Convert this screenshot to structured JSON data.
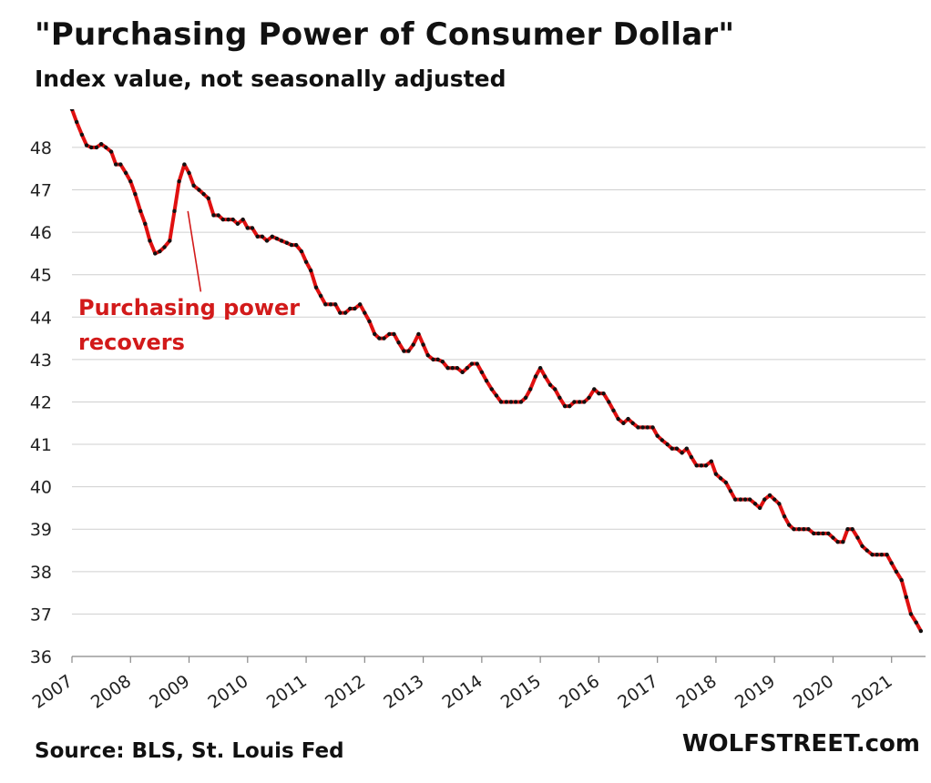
{
  "chart_data": {
    "type": "line",
    "title": "\"Purchasing Power of Consumer Dollar\"",
    "subtitle": "Index value, not seasonally adjusted",
    "source": "Source: BLS, St. Louis Fed",
    "brand": "WOLFSTREET.com",
    "xlabel": "",
    "ylabel": "",
    "xlim": [
      2007,
      2021.58
    ],
    "ylim": [
      36,
      48.9
    ],
    "y_ticks": [
      "36",
      "37",
      "38",
      "39",
      "40",
      "41",
      "42",
      "43",
      "44",
      "45",
      "46",
      "47",
      "48"
    ],
    "x_ticks": [
      "2007",
      "2008",
      "2009",
      "2010",
      "2011",
      "2012",
      "2013",
      "2014",
      "2015",
      "2016",
      "2017",
      "2018",
      "2019",
      "2020",
      "2021"
    ],
    "grid": true,
    "line_color": "#e01010",
    "marker_color": "#111111",
    "annotation": {
      "lines": [
        "Purchasing power",
        "recovers"
      ],
      "color": "#d21a1a",
      "arrow_from": [
        2009.2,
        44.6
      ],
      "arrow_to": [
        2008.98,
        46.5
      ]
    },
    "series": [
      {
        "name": "Purchasing Power of Consumer Dollar",
        "x": [
          2007.0,
          2007.08,
          2007.17,
          2007.25,
          2007.33,
          2007.42,
          2007.5,
          2007.58,
          2007.67,
          2007.75,
          2007.83,
          2007.92,
          2008.0,
          2008.08,
          2008.17,
          2008.25,
          2008.33,
          2008.42,
          2008.5,
          2008.58,
          2008.67,
          2008.75,
          2008.83,
          2008.92,
          2009.0,
          2009.08,
          2009.17,
          2009.25,
          2009.33,
          2009.42,
          2009.5,
          2009.58,
          2009.67,
          2009.75,
          2009.83,
          2009.92,
          2010.0,
          2010.08,
          2010.17,
          2010.25,
          2010.33,
          2010.42,
          2010.5,
          2010.58,
          2010.67,
          2010.75,
          2010.83,
          2010.92,
          2011.0,
          2011.08,
          2011.17,
          2011.25,
          2011.33,
          2011.42,
          2011.5,
          2011.58,
          2011.67,
          2011.75,
          2011.83,
          2011.92,
          2012.0,
          2012.08,
          2012.17,
          2012.25,
          2012.33,
          2012.42,
          2012.5,
          2012.58,
          2012.67,
          2012.75,
          2012.83,
          2012.92,
          2013.0,
          2013.08,
          2013.17,
          2013.25,
          2013.33,
          2013.42,
          2013.5,
          2013.58,
          2013.67,
          2013.75,
          2013.83,
          2013.92,
          2014.0,
          2014.08,
          2014.17,
          2014.25,
          2014.33,
          2014.42,
          2014.5,
          2014.58,
          2014.67,
          2014.75,
          2014.83,
          2014.92,
          2015.0,
          2015.08,
          2015.17,
          2015.25,
          2015.33,
          2015.42,
          2015.5,
          2015.58,
          2015.67,
          2015.75,
          2015.83,
          2015.92,
          2016.0,
          2016.08,
          2016.17,
          2016.25,
          2016.33,
          2016.42,
          2016.5,
          2016.58,
          2016.67,
          2016.75,
          2016.83,
          2016.92,
          2017.0,
          2017.08,
          2017.17,
          2017.25,
          2017.33,
          2017.42,
          2017.5,
          2017.58,
          2017.67,
          2017.75,
          2017.83,
          2017.92,
          2018.0,
          2018.08,
          2018.17,
          2018.25,
          2018.33,
          2018.42,
          2018.5,
          2018.58,
          2018.67,
          2018.75,
          2018.83,
          2018.92,
          2019.0,
          2019.08,
          2019.17,
          2019.25,
          2019.33,
          2019.42,
          2019.5,
          2019.58,
          2019.67,
          2019.75,
          2019.83,
          2019.92,
          2020.0,
          2020.08,
          2020.17,
          2020.25,
          2020.33,
          2020.42,
          2020.5,
          2020.58,
          2020.67,
          2020.75,
          2020.83,
          2020.92,
          2021.0,
          2021.08,
          2021.17,
          2021.25,
          2021.33,
          2021.42,
          2021.5
        ],
        "values": [
          48.9,
          48.6,
          48.3,
          48.05,
          48.0,
          48.0,
          48.08,
          48.0,
          47.9,
          47.6,
          47.6,
          47.4,
          47.2,
          46.9,
          46.5,
          46.2,
          45.8,
          45.5,
          45.55,
          45.65,
          45.8,
          46.5,
          47.2,
          47.6,
          47.4,
          47.1,
          47.0,
          46.9,
          46.8,
          46.4,
          46.4,
          46.3,
          46.3,
          46.3,
          46.2,
          46.3,
          46.1,
          46.1,
          45.9,
          45.9,
          45.8,
          45.9,
          45.85,
          45.8,
          45.75,
          45.7,
          45.7,
          45.55,
          45.3,
          45.1,
          44.7,
          44.5,
          44.3,
          44.3,
          44.3,
          44.1,
          44.1,
          44.2,
          44.2,
          44.3,
          44.1,
          43.9,
          43.6,
          43.5,
          43.5,
          43.6,
          43.6,
          43.4,
          43.2,
          43.2,
          43.35,
          43.6,
          43.35,
          43.1,
          43.0,
          43.0,
          42.95,
          42.8,
          42.8,
          42.8,
          42.7,
          42.8,
          42.9,
          42.9,
          42.7,
          42.5,
          42.3,
          42.15,
          42.0,
          42.0,
          42.0,
          42.0,
          42.0,
          42.1,
          42.3,
          42.6,
          42.8,
          42.6,
          42.4,
          42.3,
          42.1,
          41.9,
          41.9,
          42.0,
          42.0,
          42.0,
          42.1,
          42.3,
          42.2,
          42.2,
          42.0,
          41.8,
          41.6,
          41.5,
          41.6,
          41.5,
          41.4,
          41.4,
          41.4,
          41.4,
          41.2,
          41.1,
          41.0,
          40.9,
          40.9,
          40.8,
          40.9,
          40.7,
          40.5,
          40.5,
          40.5,
          40.6,
          40.3,
          40.2,
          40.1,
          39.9,
          39.7,
          39.7,
          39.7,
          39.7,
          39.6,
          39.5,
          39.7,
          39.8,
          39.7,
          39.6,
          39.3,
          39.1,
          39.0,
          39.0,
          39.0,
          39.0,
          38.9,
          38.9,
          38.9,
          38.9,
          38.8,
          38.7,
          38.7,
          39.0,
          39.0,
          38.8,
          38.6,
          38.5,
          38.4,
          38.4,
          38.4,
          38.4,
          38.2,
          38.0,
          37.8,
          37.4,
          37.0,
          36.8,
          36.6
        ]
      }
    ]
  }
}
